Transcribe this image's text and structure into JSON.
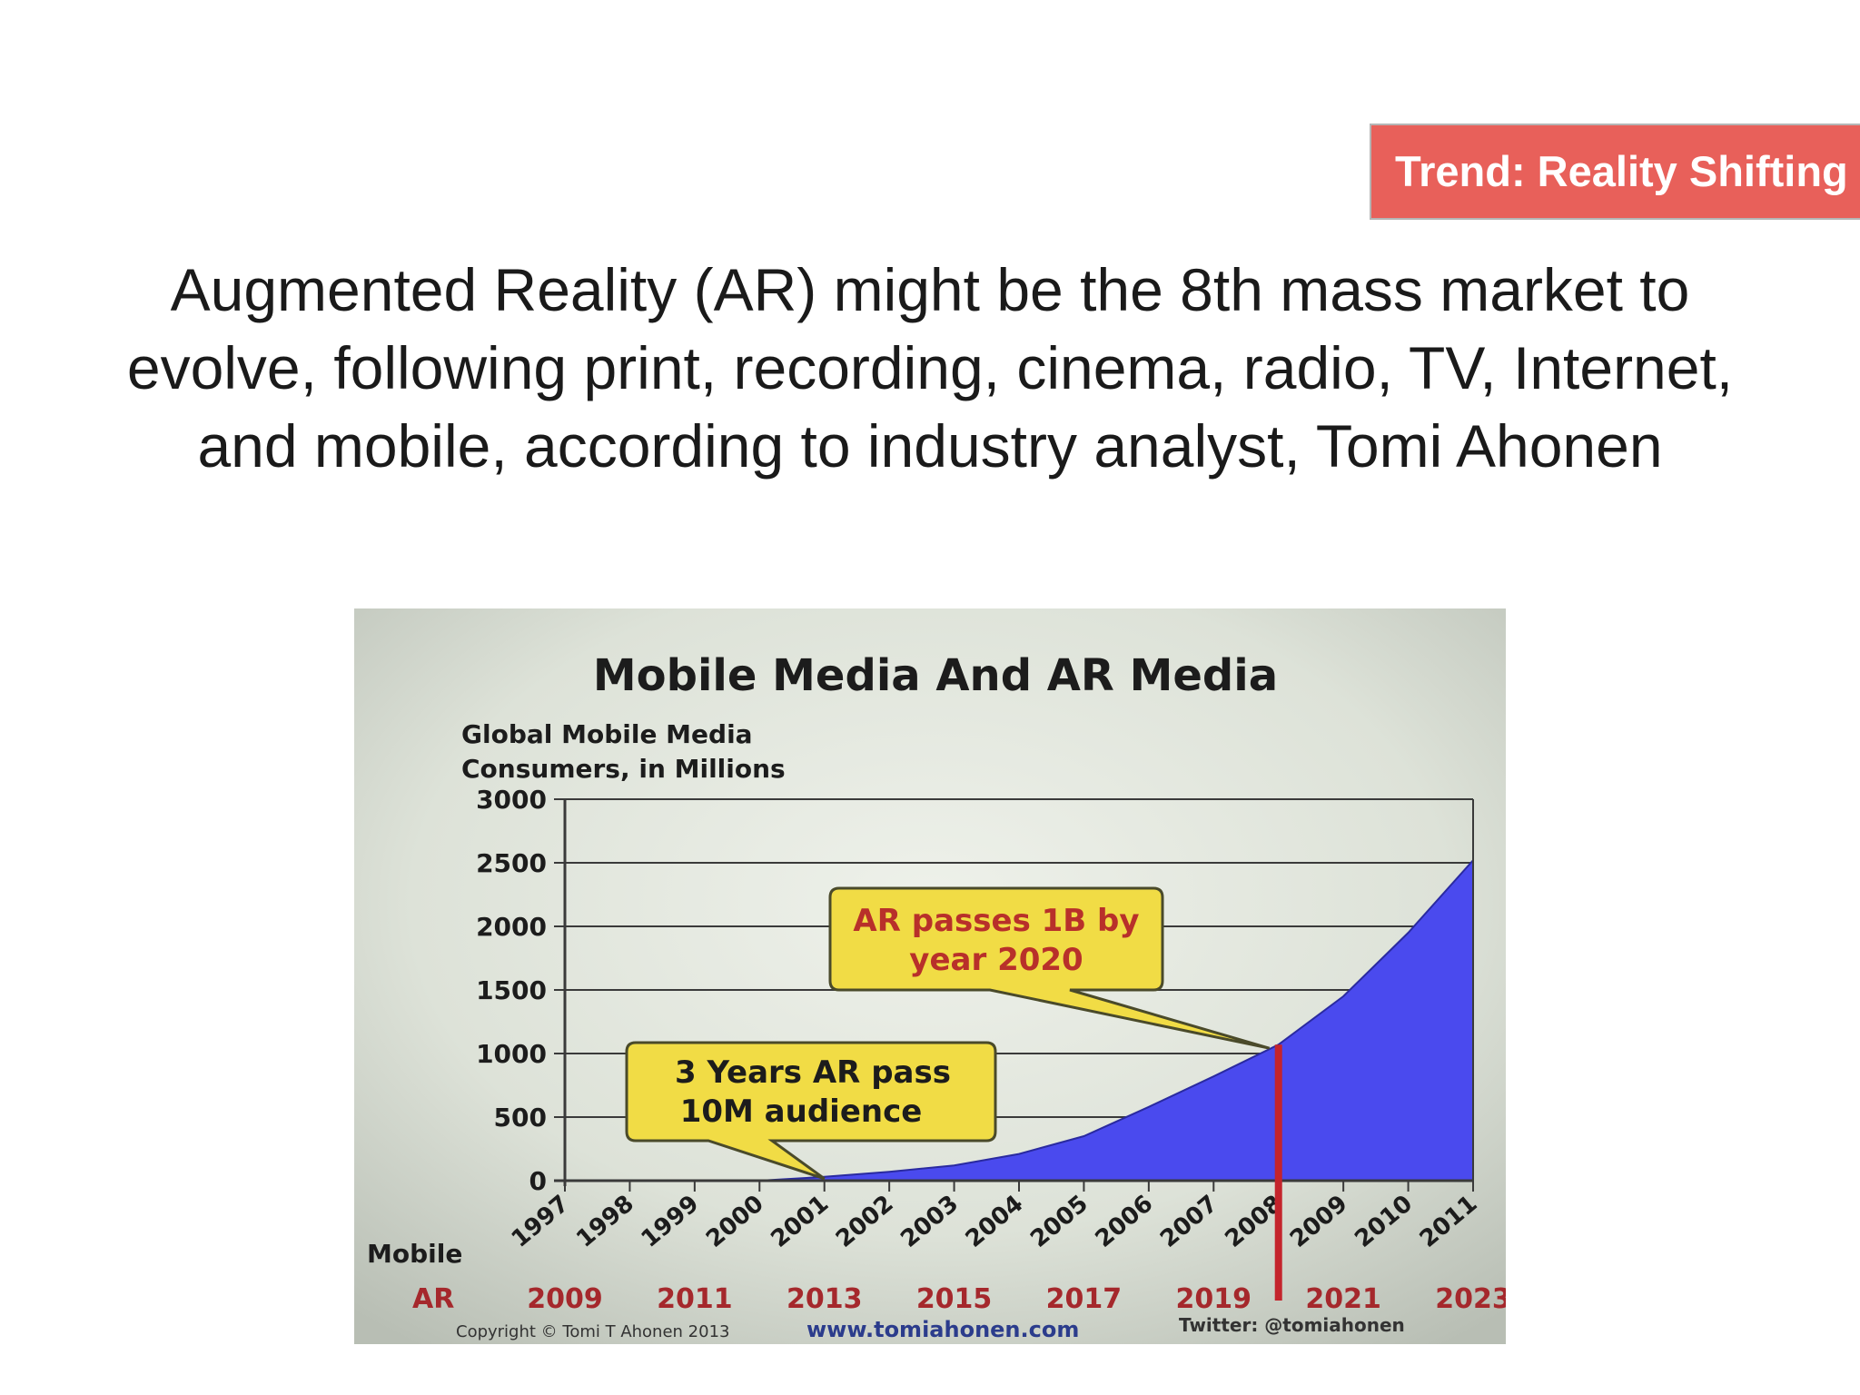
{
  "tag": {
    "label": "Trend: Reality Shifting"
  },
  "headline": "Augmented Reality (AR) might be the 8th mass market to evolve, following print, recording, cinema, radio, TV, Internet, and mobile, according to industry analyst, Tomi Ahonen",
  "colors": {
    "tag_bg": "#e8605a",
    "area_fill": "#4a4aee",
    "callout_fill": "#f1dc45",
    "callout_text": "#b8302a",
    "marker_line": "#c4242c",
    "ar_year_text": "#a5282c"
  },
  "chart_data": {
    "type": "area",
    "title": "Mobile Media And AR Media",
    "ylabel_line1": "Global Mobile Media",
    "ylabel_line2": "Consumers, in Millions",
    "ylim": [
      0,
      3000
    ],
    "yticks": [
      "3000",
      "2500",
      "2000",
      "1500",
      "1000",
      "500",
      "0"
    ],
    "ytick_values": [
      3000,
      2500,
      2000,
      1500,
      1000,
      500,
      0
    ],
    "x_row_label": "Mobile",
    "x": [
      "1997",
      "1998",
      "1999",
      "2000",
      "2001",
      "2002",
      "2003",
      "2004",
      "2005",
      "2006",
      "2007",
      "2008",
      "2009",
      "2010",
      "2011"
    ],
    "values": [
      0,
      0,
      0,
      0,
      30,
      70,
      120,
      210,
      350,
      580,
      820,
      1070,
      1450,
      1950,
      2520
    ],
    "ar_row_label": "AR",
    "ar_years": [
      "2009",
      "2011",
      "2013",
      "2015",
      "2017",
      "2019",
      "2021",
      "2023"
    ],
    "marker_x": "2008",
    "callouts": [
      {
        "line1": "AR passes 1B by",
        "line2": "year 2020"
      },
      {
        "line1": "3 Years AR pass",
        "line2": "10M audience"
      }
    ],
    "grid": true,
    "footer": {
      "copyright": "Copyright © Tomi T Ahonen 2013",
      "website": "www.tomiahonen.com",
      "twitter": "Twitter: @tomiahonen"
    }
  }
}
